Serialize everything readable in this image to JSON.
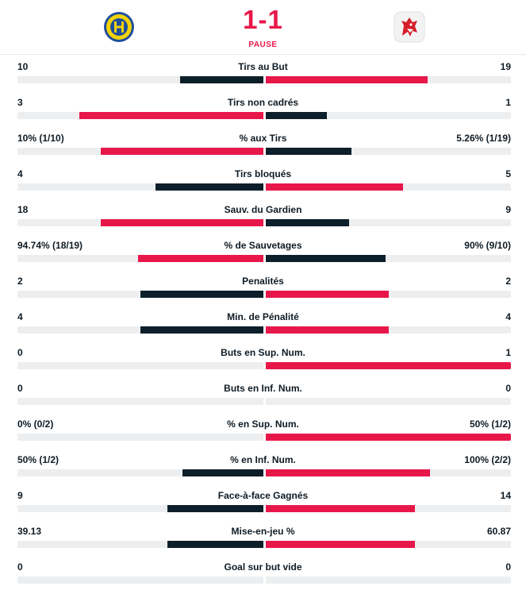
{
  "match": {
    "score": "1-1",
    "status": "PAUSE",
    "home_team_logo": "hcd-crest-icon",
    "away_team_logo": "lion-crest-icon",
    "colors": {
      "accent": "#e8174a",
      "dark": "#0d1f2a",
      "track": "#eceef0"
    }
  },
  "stats": [
    {
      "label": "Tirs au But",
      "home": "10",
      "away": "19",
      "home_fill": 0.34,
      "away_fill": 0.66
    },
    {
      "label": "Tirs non cadrés",
      "home": "3",
      "away": "1",
      "home_fill": 0.75,
      "away_fill": 0.25
    },
    {
      "label": "% aux Tirs",
      "home": "10% (1/10)",
      "away": "5.26% (1/19)",
      "home_fill": 0.66,
      "away_fill": 0.35
    },
    {
      "label": "Tirs bloqués",
      "home": "4",
      "away": "5",
      "home_fill": 0.44,
      "away_fill": 0.56
    },
    {
      "label": "Sauv. du Gardien",
      "home": "18",
      "away": "9",
      "home_fill": 0.66,
      "away_fill": 0.34
    },
    {
      "label": "% de Sauvetages",
      "home": "94.74% (18/19)",
      "away": "90% (9/10)",
      "home_fill": 0.51,
      "away_fill": 0.49
    },
    {
      "label": "Penalités",
      "home": "2",
      "away": "2",
      "home_fill": 0.5,
      "away_fill": 0.5
    },
    {
      "label": "Min. de Pénalité",
      "home": "4",
      "away": "4",
      "home_fill": 0.5,
      "away_fill": 0.5
    },
    {
      "label": "Buts en Sup. Num.",
      "home": "0",
      "away": "1",
      "home_fill": 0,
      "away_fill": 1
    },
    {
      "label": "Buts en Inf. Num.",
      "home": "0",
      "away": "0",
      "home_fill": 0,
      "away_fill": 0
    },
    {
      "label": "% en Sup. Num.",
      "home": "0% (0/2)",
      "away": "50% (1/2)",
      "home_fill": 0,
      "away_fill": 1
    },
    {
      "label": "% en Inf. Num.",
      "home": "50% (1/2)",
      "away": "100% (2/2)",
      "home_fill": 0.33,
      "away_fill": 0.67
    },
    {
      "label": "Face-à-face Gagnés",
      "home": "9",
      "away": "14",
      "home_fill": 0.39,
      "away_fill": 0.61
    },
    {
      "label": "Mise-en-jeu %",
      "home": "39.13",
      "away": "60.87",
      "home_fill": 0.39,
      "away_fill": 0.61
    },
    {
      "label": "Goal sur but vide",
      "home": "0",
      "away": "0",
      "home_fill": 0,
      "away_fill": 0
    }
  ]
}
